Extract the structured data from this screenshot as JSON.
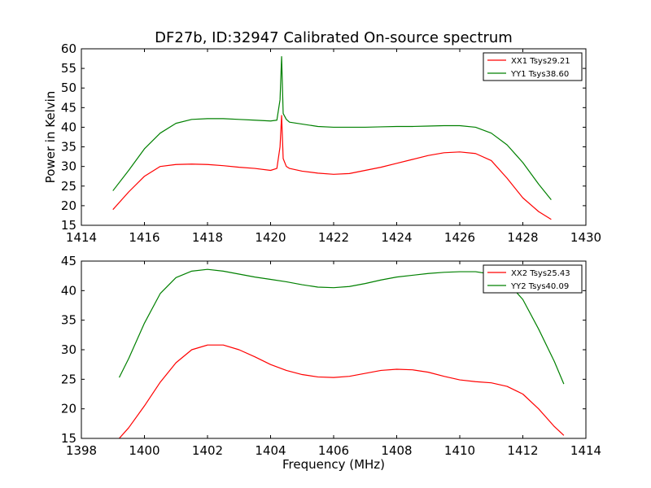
{
  "chart_data": [
    {
      "type": "line",
      "title": "DF27b, ID:32947 Calibrated On-source spectrum",
      "xlabel": "",
      "ylabel": "Power in Kelvin",
      "xlim": [
        1414,
        1430
      ],
      "ylim": [
        15,
        60
      ],
      "xticks": [
        1414,
        1416,
        1418,
        1420,
        1422,
        1424,
        1426,
        1428,
        1430
      ],
      "yticks": [
        15,
        20,
        25,
        30,
        35,
        40,
        45,
        50,
        55,
        60
      ],
      "legend_position": "top-right",
      "series": [
        {
          "name": "XX1 Tsys29.21",
          "color": "#ff0000",
          "x": [
            1415.0,
            1415.5,
            1416.0,
            1416.5,
            1417.0,
            1417.5,
            1418.0,
            1418.5,
            1419.0,
            1419.5,
            1420.0,
            1420.2,
            1420.3,
            1420.35,
            1420.4,
            1420.5,
            1420.6,
            1421.0,
            1421.5,
            1422.0,
            1422.5,
            1423.0,
            1423.5,
            1424.0,
            1424.5,
            1425.0,
            1425.5,
            1426.0,
            1426.5,
            1427.0,
            1427.5,
            1428.0,
            1428.5,
            1428.9
          ],
          "y": [
            19.0,
            23.5,
            27.5,
            30.0,
            30.5,
            30.6,
            30.5,
            30.2,
            29.8,
            29.5,
            29.0,
            29.5,
            35.0,
            43.0,
            32.0,
            30.0,
            29.5,
            28.8,
            28.3,
            28.0,
            28.2,
            29.0,
            29.8,
            30.8,
            31.8,
            32.8,
            33.5,
            33.7,
            33.3,
            31.5,
            27.0,
            22.0,
            18.5,
            16.5
          ]
        },
        {
          "name": "YY1 Tsys38.60",
          "color": "#008000",
          "x": [
            1415.0,
            1415.5,
            1416.0,
            1416.5,
            1417.0,
            1417.5,
            1418.0,
            1418.5,
            1419.0,
            1419.5,
            1420.0,
            1420.2,
            1420.3,
            1420.35,
            1420.4,
            1420.5,
            1420.6,
            1421.0,
            1421.5,
            1422.0,
            1422.5,
            1423.0,
            1423.5,
            1424.0,
            1424.5,
            1425.0,
            1425.5,
            1426.0,
            1426.5,
            1427.0,
            1427.5,
            1428.0,
            1428.5,
            1428.9
          ],
          "y": [
            23.8,
            29.0,
            34.5,
            38.5,
            41.0,
            42.0,
            42.2,
            42.2,
            42.0,
            41.8,
            41.6,
            41.8,
            47.0,
            58.0,
            43.5,
            42.0,
            41.3,
            40.8,
            40.2,
            40.0,
            40.0,
            40.0,
            40.1,
            40.2,
            40.2,
            40.3,
            40.4,
            40.4,
            40.0,
            38.5,
            35.5,
            31.0,
            25.5,
            21.5
          ]
        }
      ]
    },
    {
      "type": "line",
      "title": "",
      "xlabel": "Frequency (MHz)",
      "ylabel": "",
      "xlim": [
        1398,
        1414
      ],
      "ylim": [
        15,
        45
      ],
      "xticks": [
        1398,
        1400,
        1402,
        1404,
        1406,
        1408,
        1410,
        1412,
        1414
      ],
      "yticks": [
        15,
        20,
        25,
        30,
        35,
        40,
        45
      ],
      "legend_position": "top-right",
      "series": [
        {
          "name": "XX2 Tsys25.43",
          "color": "#ff0000",
          "x": [
            1399.2,
            1399.5,
            1400.0,
            1400.5,
            1401.0,
            1401.5,
            1402.0,
            1402.5,
            1403.0,
            1403.5,
            1404.0,
            1404.5,
            1405.0,
            1405.5,
            1406.0,
            1406.5,
            1407.0,
            1407.5,
            1408.0,
            1408.5,
            1409.0,
            1409.5,
            1410.0,
            1410.5,
            1411.0,
            1411.5,
            1412.0,
            1412.5,
            1413.0,
            1413.3
          ],
          "y": [
            15.0,
            16.8,
            20.5,
            24.5,
            27.8,
            30.0,
            30.8,
            30.8,
            30.0,
            28.8,
            27.5,
            26.5,
            25.8,
            25.4,
            25.3,
            25.5,
            26.0,
            26.5,
            26.7,
            26.6,
            26.2,
            25.5,
            24.9,
            24.6,
            24.4,
            23.8,
            22.5,
            20.0,
            17.0,
            15.5
          ]
        },
        {
          "name": "YY2 Tsys40.09",
          "color": "#008000",
          "x": [
            1399.2,
            1399.5,
            1400.0,
            1400.5,
            1401.0,
            1401.5,
            1402.0,
            1402.5,
            1403.0,
            1403.5,
            1404.0,
            1404.5,
            1405.0,
            1405.5,
            1406.0,
            1406.5,
            1407.0,
            1407.5,
            1408.0,
            1408.5,
            1409.0,
            1409.5,
            1410.0,
            1410.5,
            1411.0,
            1411.5,
            1412.0,
            1412.5,
            1413.0,
            1413.3
          ],
          "y": [
            25.3,
            28.5,
            34.5,
            39.5,
            42.2,
            43.3,
            43.6,
            43.3,
            42.8,
            42.3,
            41.9,
            41.5,
            41.0,
            40.6,
            40.5,
            40.7,
            41.2,
            41.8,
            42.3,
            42.6,
            42.9,
            43.1,
            43.2,
            43.2,
            42.8,
            41.5,
            38.5,
            33.5,
            28.0,
            24.2
          ]
        }
      ]
    }
  ]
}
